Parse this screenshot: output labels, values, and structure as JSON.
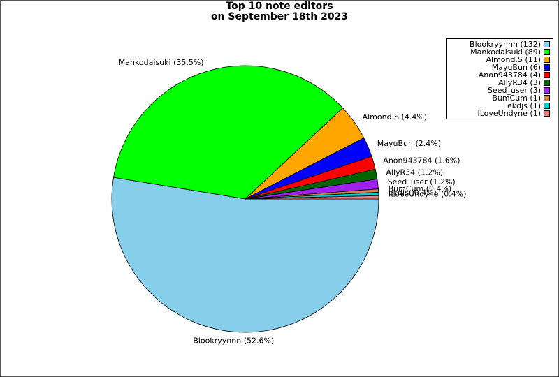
{
  "chart_data": {
    "type": "pie",
    "title_lines": [
      "Top 10 note editors",
      "on September 18th 2023"
    ],
    "slices": [
      {
        "name": "Blookryynnn",
        "value": 132,
        "percent_label": "Blookryynnn (52.6%)",
        "legend_label": "Blookryynnn (132)",
        "color": "#87ceeb"
      },
      {
        "name": "Mankodaisuki",
        "value": 89,
        "percent_label": "Mankodaisuki (35.5%)",
        "legend_label": "Mankodaisuki (89)",
        "color": "#00ff00"
      },
      {
        "name": "Almond.S",
        "value": 11,
        "percent_label": "Almond.S (4.4%)",
        "legend_label": "Almond.S (11)",
        "color": "#ffa500"
      },
      {
        "name": "MayuBun",
        "value": 6,
        "percent_label": "MayuBun (2.4%)",
        "legend_label": "MayuBun (6)",
        "color": "#0000ff"
      },
      {
        "name": "Anon943784",
        "value": 4,
        "percent_label": "Anon943784 (1.6%)",
        "legend_label": "Anon943784 (4)",
        "color": "#ff0000"
      },
      {
        "name": "AllyR34",
        "value": 3,
        "percent_label": "AllyR34 (1.2%)",
        "legend_label": "AllyR34 (3)",
        "color": "#006400"
      },
      {
        "name": "Seed_user",
        "value": 3,
        "percent_label": "Seed_user (1.2%)",
        "legend_label": "Seed_user (3)",
        "color": "#a020f0"
      },
      {
        "name": "BumCum",
        "value": 1,
        "percent_label": "BumCum (0.4%)",
        "legend_label": "BumCum (1)",
        "color": "#cd853f"
      },
      {
        "name": "ekdjs",
        "value": 1,
        "percent_label": "ekdjs (0.4%)",
        "legend_label": "ekdjs (1)",
        "color": "#00ced1"
      },
      {
        "name": "ILoveUndyne",
        "value": 1,
        "percent_label": "ILoveUndyne (0.4%)",
        "legend_label": "ILoveUndyne (1)",
        "color": "#f08080"
      }
    ],
    "legend": {
      "placement": "top-right"
    }
  }
}
